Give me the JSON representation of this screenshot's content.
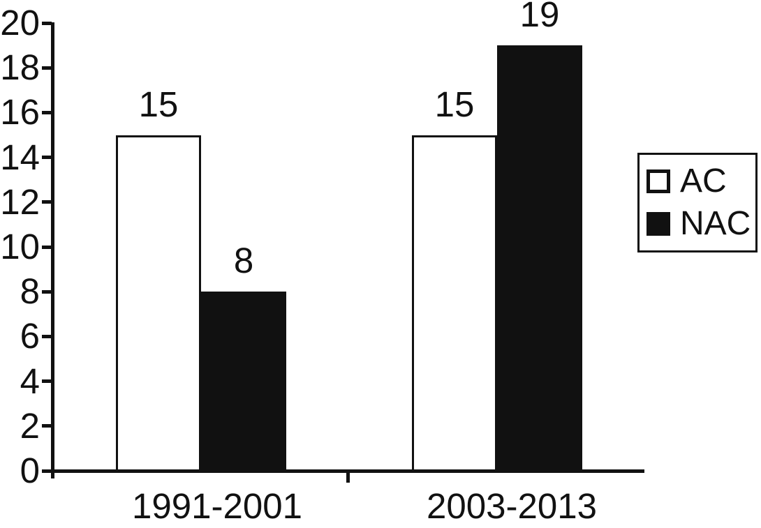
{
  "chart_data": {
    "type": "bar",
    "title": "",
    "xlabel": "",
    "ylabel": "",
    "categories": [
      "1991-2001",
      "2003-2013"
    ],
    "series": [
      {
        "name": "AC",
        "fill": "#ffffff",
        "values": [
          15,
          15
        ]
      },
      {
        "name": "NAC",
        "fill": "#111111",
        "values": [
          8,
          19
        ]
      }
    ],
    "bar_value_labels": [
      {
        "category": "1991-2001",
        "AC": "15",
        "NAC": "8"
      },
      {
        "category": "2003-2013",
        "AC": "15",
        "NAC": "19"
      }
    ],
    "ylim": [
      0,
      20
    ],
    "yticks": [
      0,
      2,
      4,
      6,
      8,
      10,
      12,
      14,
      16,
      18,
      20
    ],
    "grid": false,
    "legend_position": "right",
    "axis_color": "#111111",
    "text_color": "#111111",
    "background": "#ffffff"
  }
}
